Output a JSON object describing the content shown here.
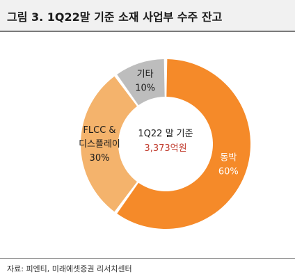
{
  "title": "그림 3. 1Q22말 기준 소재 사업부 수주 잔고",
  "source": "자료: 피엔티, 미래에셋증권 리서치센터",
  "chart_data": {
    "type": "pie",
    "donut": true,
    "center_label": "1Q22 말 기준",
    "center_value": "3,373억원",
    "slices": [
      {
        "name": "동박",
        "value": 60,
        "value_label": "60%",
        "color": "#f58a29",
        "label_color": "#ffffff"
      },
      {
        "name": "FLCC &\n디스플레이",
        "value": 30,
        "value_label": "30%",
        "color": "#f4b36c",
        "label_color": "#1a1a1a"
      },
      {
        "name": "기타",
        "value": 10,
        "value_label": "10%",
        "color": "#bdbdbd",
        "label_color": "#1a1a1a"
      }
    ],
    "colors": {
      "center_value": "#c0392b"
    }
  }
}
